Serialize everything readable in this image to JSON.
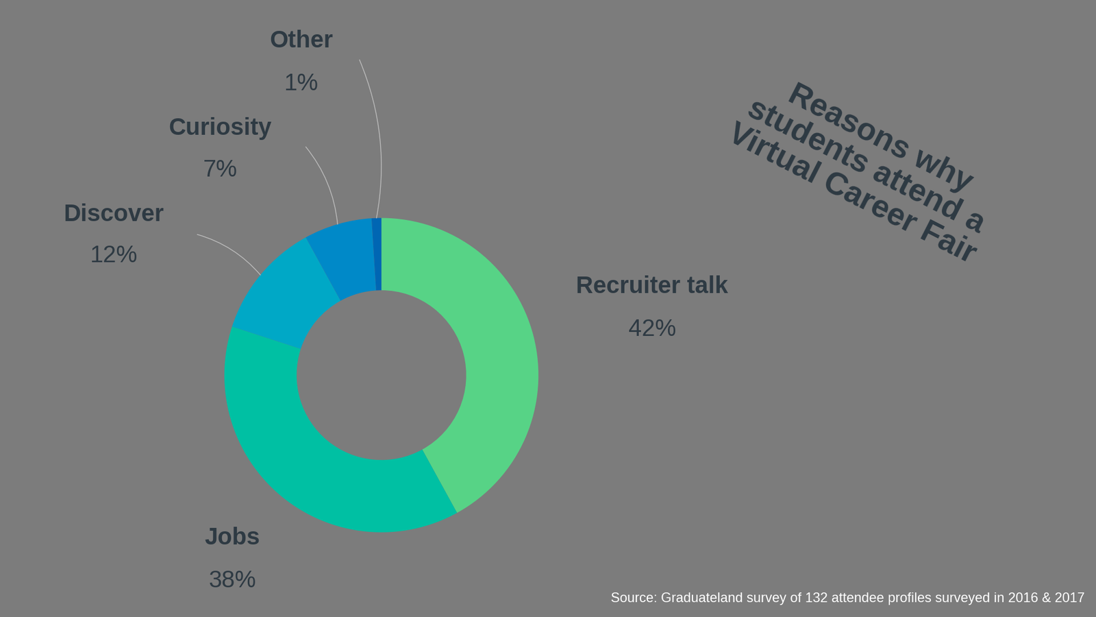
{
  "chart_data": {
    "type": "donut",
    "title": "Reasons why students attend a Virtual Career Fair",
    "categories": [
      "Recruiter talk",
      "Jobs",
      "Discover",
      "Curiosity",
      "Other"
    ],
    "values": [
      42,
      38,
      12,
      7,
      1
    ],
    "value_labels": [
      "42%",
      "38%",
      "12%",
      "7%",
      "1%"
    ],
    "colors": [
      "#57d386",
      "#00c0a3",
      "#00a8c6",
      "#0089c8",
      "#0066b3"
    ],
    "data_labels": true,
    "source": "Source: Graduateland survey of 132 attendee profiles surveyed in 2016 & 2017"
  }
}
